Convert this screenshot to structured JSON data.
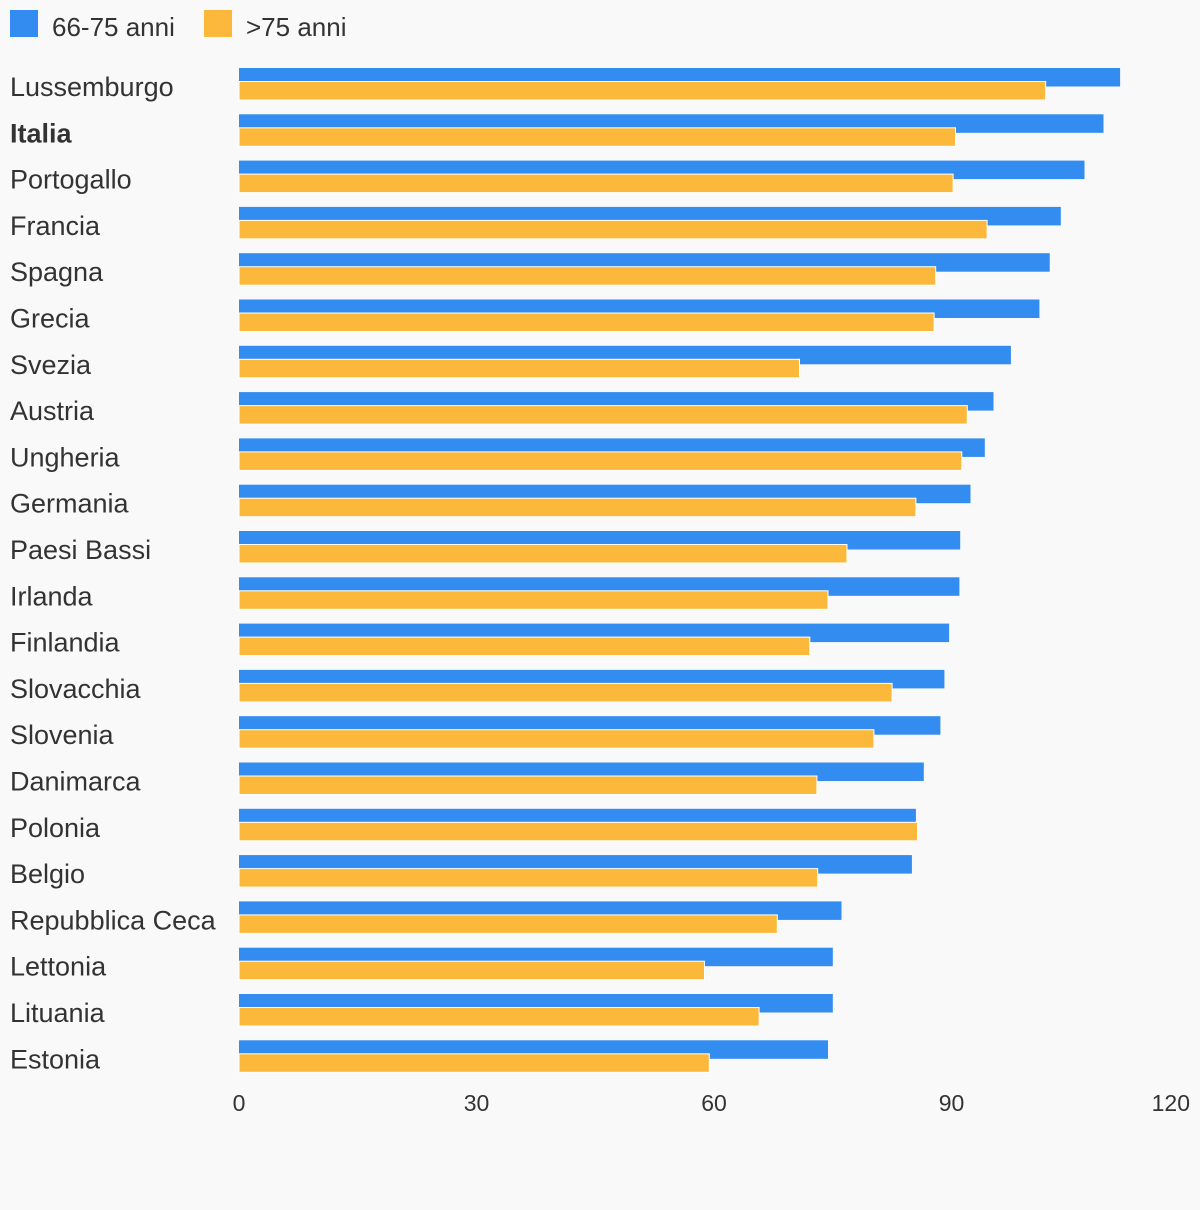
{
  "colors": {
    "series_1": "#338cef",
    "series_2": "#fcb83a",
    "text": "#333333",
    "background": "#f9f9f9"
  },
  "chart_data": {
    "type": "bar",
    "orientation": "horizontal",
    "title": "",
    "xlabel": "",
    "ylabel": "",
    "xlim": [
      0,
      120
    ],
    "x_ticks": [
      0,
      30,
      60,
      90,
      120
    ],
    "grid": false,
    "legend_position": "top-left",
    "highlighted_category": "Italia",
    "categories": [
      "Lussemburgo",
      "Italia",
      "Portogallo",
      "Francia",
      "Spagna",
      "Grecia",
      "Svezia",
      "Austria",
      "Ungheria",
      "Germania",
      "Paesi Bassi",
      "Irlanda",
      "Finlandia",
      "Slovacchia",
      "Slovenia",
      "Danimarca",
      "Polonia",
      "Belgio",
      "Repubblica Ceca",
      "Lettonia",
      "Lituania",
      "Estonia"
    ],
    "series": [
      {
        "name": "66-75 anni",
        "color": "#338cef",
        "values": [
          111.3,
          109.2,
          106.8,
          103.8,
          102.4,
          101.1,
          97.5,
          95.3,
          94.2,
          92.4,
          91.1,
          91.0,
          89.7,
          89.1,
          88.6,
          86.5,
          85.5,
          85.0,
          76.1,
          75.0,
          75.0,
          74.4
        ]
      },
      {
        "name": ">75 anni",
        "color": "#fcb83a",
        "values": [
          101.9,
          90.5,
          90.2,
          94.5,
          88.0,
          87.8,
          70.8,
          92.0,
          91.3,
          85.5,
          76.8,
          74.4,
          72.1,
          82.5,
          80.2,
          73.0,
          85.7,
          73.1,
          68.0,
          58.8,
          65.7,
          59.4
        ]
      }
    ]
  }
}
